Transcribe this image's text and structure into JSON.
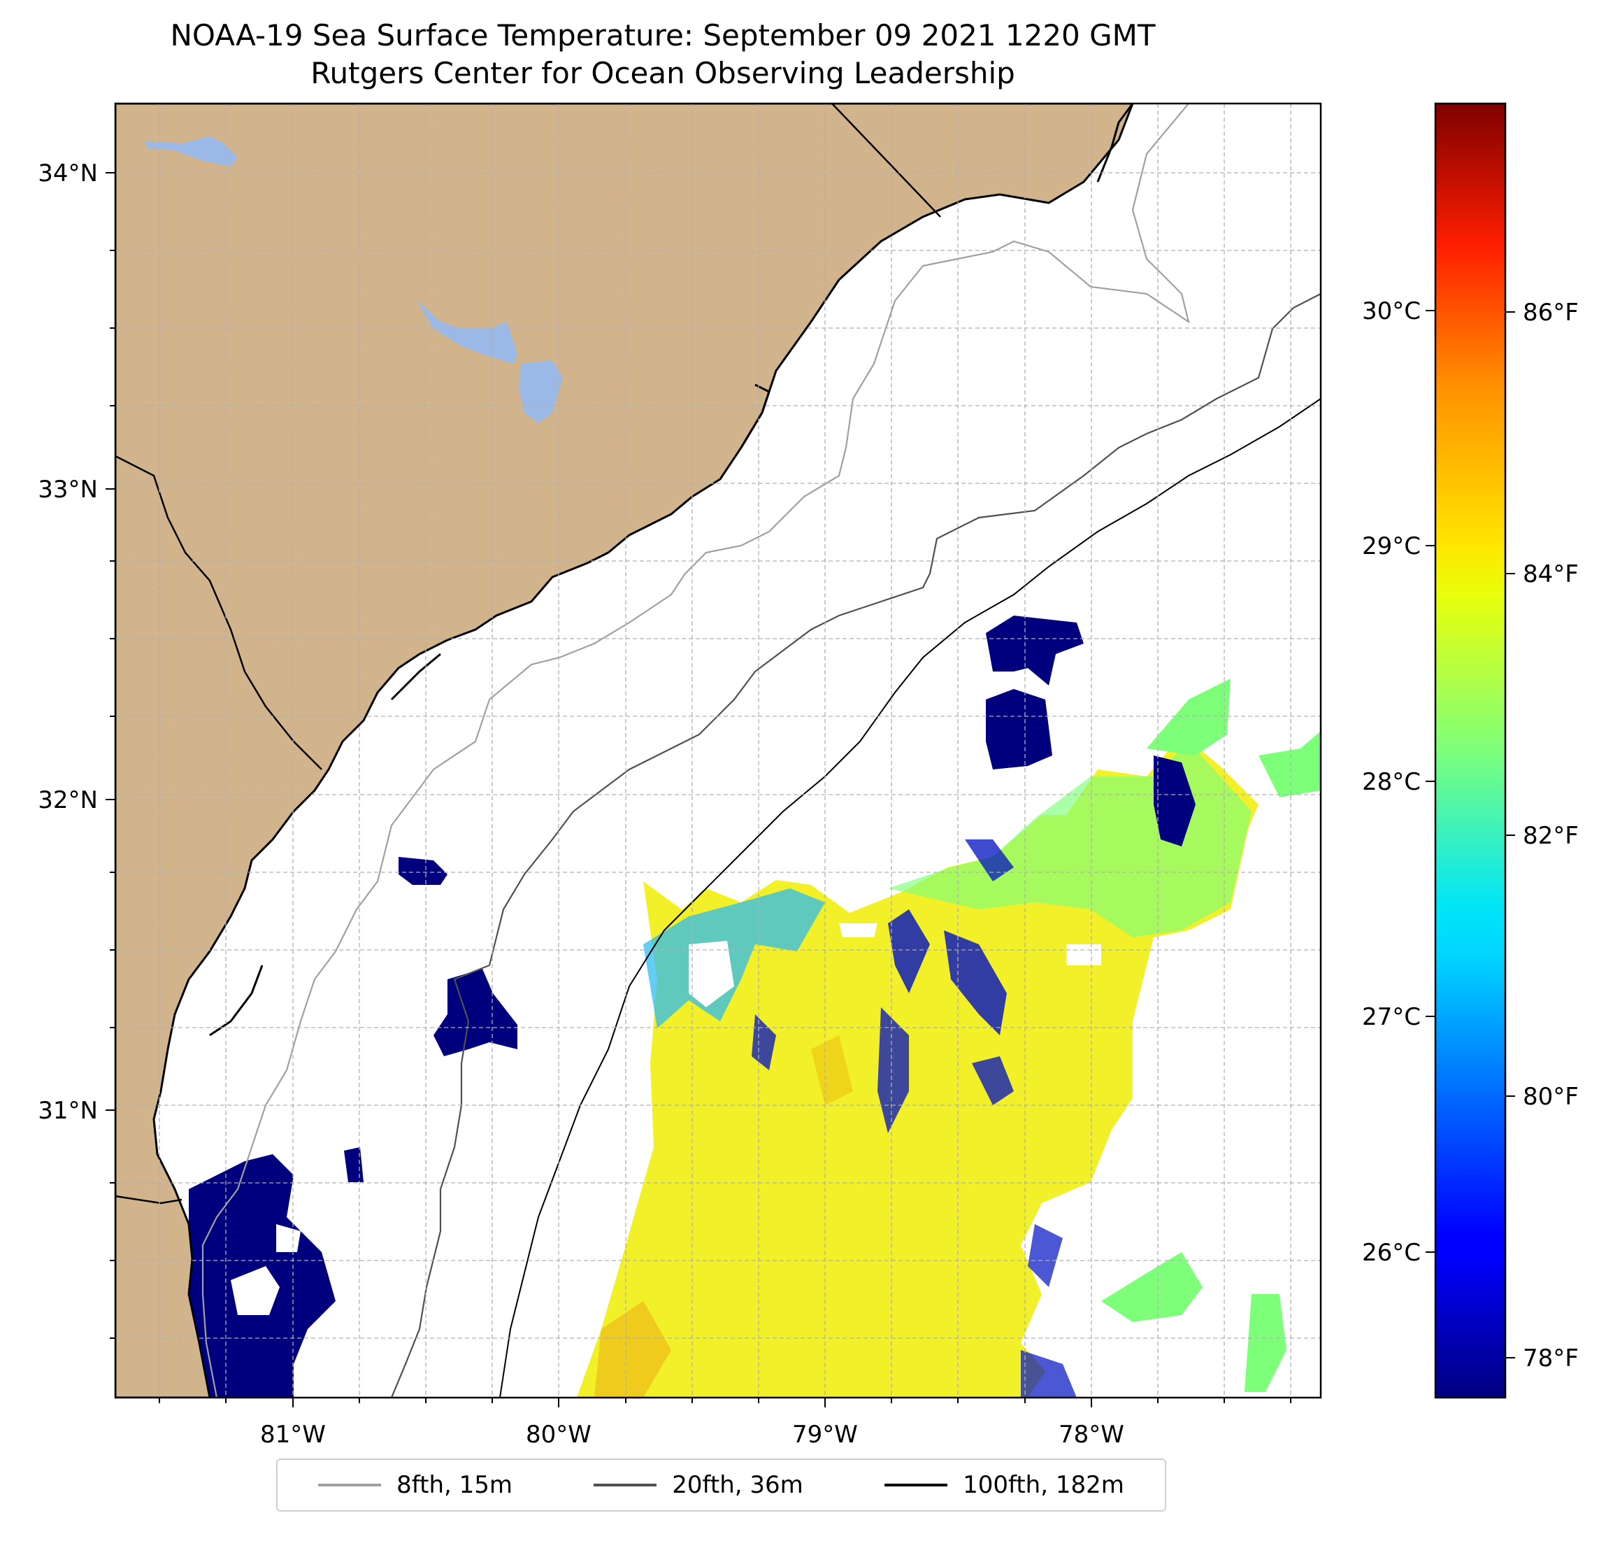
{
  "title": {
    "line1": "NOAA-19 Sea Surface Temperature: September 09 2021 1220 GMT",
    "line2": "Rutgers Center for Ocean Observing Leadership"
  },
  "map": {
    "lon_range": [
      -81.67,
      -77.13
    ],
    "lat_range": [
      30.08,
      34.22
    ],
    "land_color": "#d2b48c",
    "water_body_color": "#9ab9e6",
    "lon_ticks": [
      {
        "value": -81,
        "label": "81°W"
      },
      {
        "value": -80,
        "label": "80°W"
      },
      {
        "value": -79,
        "label": "79°W"
      },
      {
        "value": -78,
        "label": "78°W"
      }
    ],
    "lat_ticks": [
      {
        "value": 31,
        "label": "31°N"
      },
      {
        "value": 32,
        "label": "32°N"
      },
      {
        "value": 33,
        "label": "33°N"
      },
      {
        "value": 34,
        "label": "34°N"
      }
    ]
  },
  "colorbar": {
    "colormap": "jet",
    "range_c": [
      25.4,
      31.0
    ],
    "celsius_ticks": [
      {
        "value": 26,
        "label": "26°C"
      },
      {
        "value": 27,
        "label": "27°C"
      },
      {
        "value": 28,
        "label": "28°C"
      },
      {
        "value": 29,
        "label": "29°C"
      },
      {
        "value": 30,
        "label": "30°C"
      }
    ],
    "fahrenheit_ticks": [
      {
        "value": 78,
        "label": "78°F"
      },
      {
        "value": 80,
        "label": "80°F"
      },
      {
        "value": 82,
        "label": "82°F"
      },
      {
        "value": 84,
        "label": "84°F"
      },
      {
        "value": 86,
        "label": "86°F"
      }
    ]
  },
  "legend": {
    "items": [
      {
        "label": "8fth, 15m",
        "color": "#a0a0a0"
      },
      {
        "label": "20fth, 36m",
        "color": "#505050"
      },
      {
        "label": "100fth, 182m",
        "color": "#000000"
      }
    ]
  }
}
